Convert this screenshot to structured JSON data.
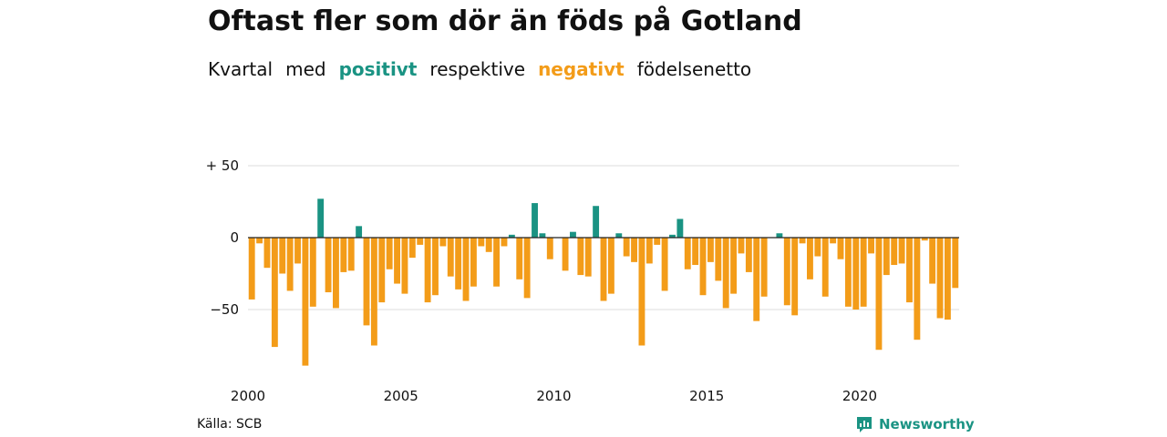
{
  "title": "Oftast fler som dör än föds på Gotland",
  "subtitle": {
    "w1": "Kvartal",
    "w2": "med",
    "positive": "positivt",
    "w3": "respektive",
    "negative": "negativt",
    "w4": "födelsenetto"
  },
  "colors": {
    "positive": "#1a9383",
    "negative": "#f39c19",
    "grid": "#dddddd",
    "zero": "#222222"
  },
  "source": "Källa: SCB",
  "brand": {
    "name": "Newsworthy",
    "icon": "newsworthy-chart-icon",
    "color": "#1a9383"
  },
  "chart_data": {
    "type": "bar",
    "y_ticks": [
      {
        "value": 50,
        "label": "+ 50"
      },
      {
        "value": 0,
        "label": "0"
      },
      {
        "value": -50,
        "label": "−50"
      }
    ],
    "x_ticks": [
      {
        "value": 2000,
        "label": "2000"
      },
      {
        "value": 2005,
        "label": "2005"
      },
      {
        "value": 2010,
        "label": "2010"
      },
      {
        "value": 2015,
        "label": "2015"
      },
      {
        "value": 2020,
        "label": "2020"
      }
    ],
    "ylim": [
      -90,
      55
    ],
    "xlim": [
      2000,
      2023.75
    ],
    "grid": true,
    "start_year": 2000,
    "values": [
      -43,
      -4,
      -21,
      -76,
      -25,
      -37,
      -18,
      -89,
      -48,
      27,
      -38,
      -49,
      -24,
      -23,
      8,
      -61,
      -75,
      -45,
      -22,
      -32,
      -39,
      -14,
      -5,
      -45,
      -40,
      -6,
      -27,
      -36,
      -44,
      -34,
      -6,
      -10,
      -34,
      -6,
      2,
      -29,
      -42,
      24,
      3,
      -15,
      0,
      -23,
      4,
      -26,
      -27,
      22,
      -44,
      -39,
      3,
      -13,
      -17,
      -75,
      -18,
      -5,
      -37,
      2,
      13,
      -22,
      -19,
      -40,
      -17,
      -30,
      -49,
      -39,
      -11,
      -24,
      -58,
      -41,
      0,
      3,
      -47,
      -54,
      -4,
      -29,
      -13,
      -41,
      -4,
      -15,
      -48,
      -50,
      -48,
      -11,
      -78,
      -26,
      -19,
      -18,
      -45,
      -71,
      -2,
      -32,
      -56,
      -57,
      -35
    ]
  }
}
